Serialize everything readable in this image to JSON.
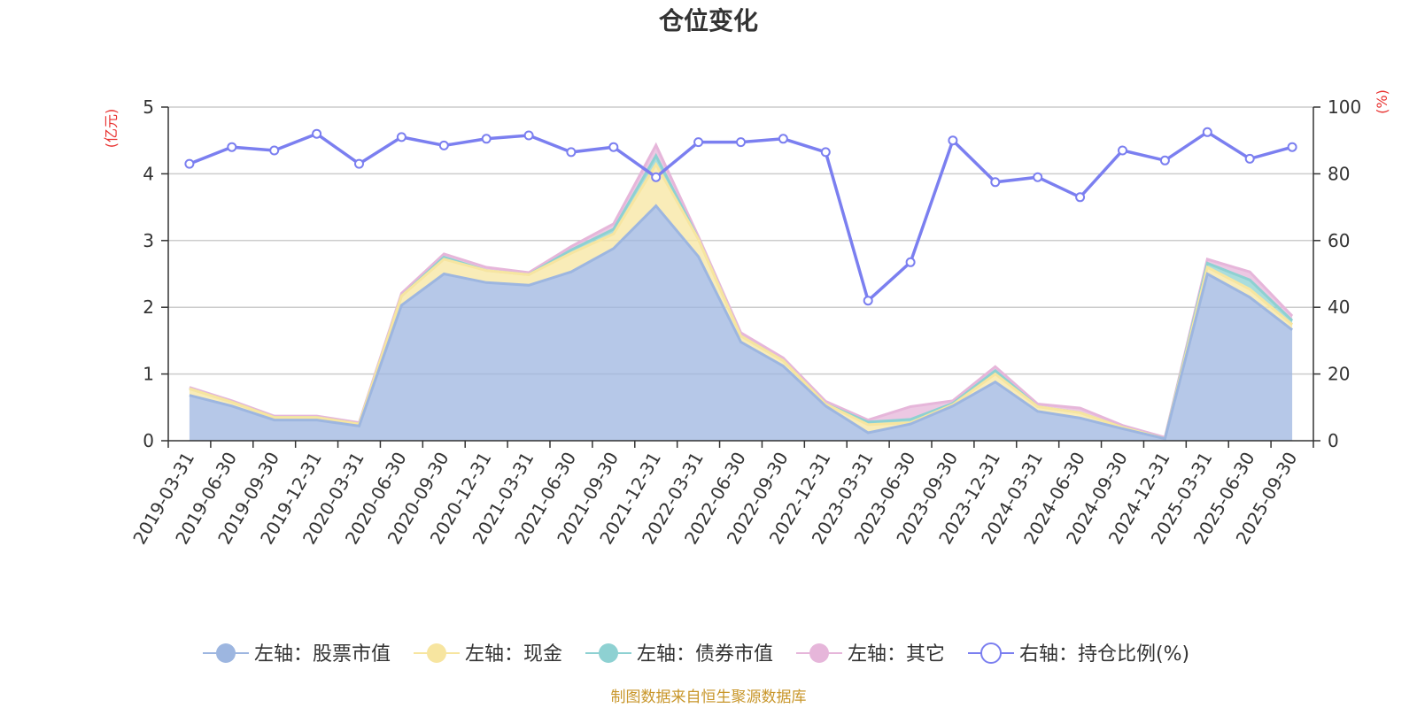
{
  "chart_data": {
    "type": "area",
    "title": "仓位变化",
    "left_axis": {
      "unit": "(亿元)",
      "ticks": [
        "0",
        "1",
        "2",
        "3",
        "4",
        "5"
      ],
      "ylim": [
        0,
        5
      ]
    },
    "right_axis": {
      "unit": "(%)",
      "ticks": [
        "0",
        "20",
        "40",
        "60",
        "80",
        "100"
      ],
      "ylim": [
        0,
        100
      ]
    },
    "grid": true,
    "stacked": true,
    "legend_position": "bottom",
    "categories": [
      "2019-03-31",
      "2019-06-30",
      "2019-09-30",
      "2019-12-31",
      "2020-03-31",
      "2020-06-30",
      "2020-09-30",
      "2020-12-31",
      "2021-03-31",
      "2021-06-30",
      "2021-09-30",
      "2021-12-31",
      "2022-03-31",
      "2022-06-30",
      "2022-09-30",
      "2022-12-31",
      "2023-03-31",
      "2023-06-30",
      "2023-09-30",
      "2023-12-31",
      "2024-03-31",
      "2024-06-30",
      "2024-09-30",
      "2024-12-31",
      "2025-03-31",
      "2025-06-30",
      "2025-09-30"
    ],
    "series": [
      {
        "name": "左轴：股票市值",
        "axis": "left",
        "color": "#9db6e0",
        "values": [
          0.68,
          0.52,
          0.31,
          0.31,
          0.22,
          2.03,
          2.5,
          2.37,
          2.33,
          2.53,
          2.88,
          3.52,
          2.76,
          1.48,
          1.12,
          0.52,
          0.12,
          0.25,
          0.52,
          0.88,
          0.44,
          0.34,
          0.18,
          0.03,
          2.5,
          2.15,
          1.66
        ]
      },
      {
        "name": "左轴：现金",
        "axis": "left",
        "color": "#f7e5a0",
        "values": [
          0.1,
          0.06,
          0.04,
          0.04,
          0.03,
          0.14,
          0.22,
          0.18,
          0.16,
          0.28,
          0.22,
          0.62,
          0.26,
          0.09,
          0.08,
          0.03,
          0.12,
          0.02,
          0.02,
          0.12,
          0.07,
          0.08,
          0.02,
          0.0,
          0.1,
          0.12,
          0.08
        ]
      },
      {
        "name": "左轴：债券市值",
        "axis": "left",
        "color": "#8ed1d2",
        "values": [
          0.0,
          0.0,
          0.0,
          0.0,
          0.0,
          0.0,
          0.03,
          0.0,
          0.0,
          0.05,
          0.07,
          0.13,
          0.0,
          0.0,
          0.0,
          0.0,
          0.04,
          0.05,
          0.02,
          0.05,
          0.0,
          0.0,
          0.0,
          0.0,
          0.06,
          0.14,
          0.06
        ]
      },
      {
        "name": "左轴：其它",
        "axis": "left",
        "color": "#e6b6da",
        "values": [
          0.02,
          0.02,
          0.02,
          0.02,
          0.02,
          0.04,
          0.05,
          0.05,
          0.03,
          0.05,
          0.08,
          0.16,
          0.04,
          0.05,
          0.04,
          0.04,
          0.03,
          0.19,
          0.04,
          0.06,
          0.04,
          0.07,
          0.03,
          0.02,
          0.06,
          0.12,
          0.07
        ]
      },
      {
        "name": "右轴：持仓比例(%)",
        "axis": "right",
        "color": "#7b7ff0",
        "values": [
          83,
          88,
          87,
          92,
          83,
          91,
          88.5,
          90.5,
          91.5,
          86.5,
          88,
          79,
          89.5,
          89.5,
          90.5,
          86.5,
          42,
          53.5,
          90,
          77.5,
          79,
          73,
          87,
          84,
          92.5,
          84.5,
          88
        ]
      }
    ]
  },
  "footer": {
    "source": "制图数据来自恒生聚源数据库"
  },
  "colors": {
    "right_axis_unit": "#e8312f",
    "source_text": "#c8962a",
    "axis_line": "#333333",
    "grid": "#cccccc"
  }
}
